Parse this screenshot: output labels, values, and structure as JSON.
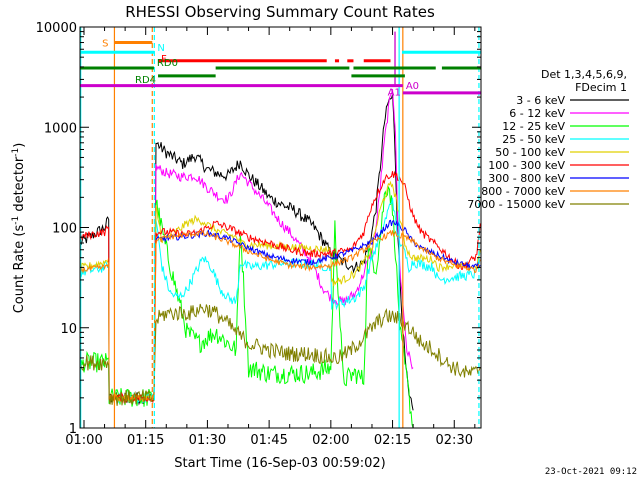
{
  "chart_data": {
    "type": "line",
    "title": "RHESSI Observing Summary Count Rates",
    "xlabel": "Start Time (16-Sep-03 00:59:02)",
    "ylabel": "Count Rate (s⁻¹ detector⁻¹)",
    "ylabel_parts": [
      "Count Rate (s",
      "-1",
      " detector",
      "-1",
      ")"
    ],
    "yscale": "log",
    "ylim": [
      1,
      10000
    ],
    "xlim_min": [
      59.03,
      156.5
    ],
    "x_ticks": [
      {
        "m": 60,
        "label": "01:00"
      },
      {
        "m": 75,
        "label": "01:15"
      },
      {
        "m": 90,
        "label": "01:30"
      },
      {
        "m": 105,
        "label": "01:45"
      },
      {
        "m": 120,
        "label": "02:00"
      },
      {
        "m": 135,
        "label": "02:15"
      },
      {
        "m": 150,
        "label": "02:30"
      }
    ],
    "y_ticks": [
      {
        "v": 1,
        "label": "1"
      },
      {
        "v": 10,
        "label": "10"
      },
      {
        "v": 100,
        "label": "100"
      },
      {
        "v": 1000,
        "label": "1000"
      },
      {
        "v": 10000,
        "label": "10000"
      }
    ],
    "legend": {
      "header": [
        "Det 1,3,4,5,6,9,",
        "FDecim 1"
      ],
      "position": "right"
    },
    "series": [
      {
        "name": "3 - 6 keV",
        "color": "#000000",
        "noise": 0.06,
        "x": [
          59.1,
          65,
          66,
          66.1,
          77,
          77.5,
          80,
          84,
          87,
          90,
          93,
          95,
          98,
          100,
          103,
          105,
          108,
          111,
          114,
          116,
          118,
          120,
          123,
          126,
          128,
          130,
          131,
          132,
          133,
          134,
          135,
          135.5,
          136.2,
          136.8,
          137.5,
          138,
          139,
          140
        ],
        "y": [
          70,
          100,
          120,
          2,
          2,
          700,
          560,
          430,
          520,
          380,
          340,
          330,
          450,
          330,
          250,
          200,
          170,
          150,
          120,
          100,
          75,
          55,
          45,
          40,
          45,
          90,
          160,
          400,
          1100,
          1800,
          2000,
          800,
          100,
          30,
          10,
          5,
          2,
          1.5
        ]
      },
      {
        "name": "6 - 12 keV",
        "color": "#ff00ff",
        "noise": 0.05,
        "x": [
          77,
          77.5,
          80,
          84,
          87,
          90,
          93,
          95,
          98,
          101,
          104,
          106,
          108,
          110,
          112,
          114,
          116,
          118,
          120,
          123,
          126,
          128,
          130,
          131,
          132,
          133,
          134,
          135,
          135.7,
          136.3,
          137,
          138.5,
          140
        ],
        "y": [
          2,
          400,
          350,
          320,
          330,
          250,
          200,
          190,
          350,
          250,
          180,
          140,
          110,
          90,
          70,
          55,
          40,
          25,
          20,
          18,
          22,
          35,
          60,
          100,
          250,
          700,
          1500,
          2600,
          900,
          100,
          30,
          6,
          4
        ]
      },
      {
        "name": "12 - 25 keV",
        "color": "#00ff00",
        "noise": 0.1,
        "x": [
          59.1,
          60,
          66,
          66.1,
          77,
          77.5,
          80,
          85,
          88,
          90,
          92,
          95,
          97,
          98,
          100,
          105,
          110,
          115,
          120,
          121,
          123,
          126,
          128,
          129,
          131,
          132,
          133,
          134,
          135,
          135.7,
          136.3,
          137,
          138.5,
          140
        ],
        "y": [
          4,
          4.5,
          4.5,
          2,
          2,
          180,
          60,
          9,
          7,
          8,
          9,
          7,
          6,
          100,
          4,
          3.5,
          3.5,
          3.5,
          4,
          100,
          3,
          3.5,
          3,
          60,
          40,
          80,
          200,
          280,
          150,
          60,
          20,
          8,
          3,
          1
        ]
      },
      {
        "name": "25 - 50 keV",
        "color": "#00ffff",
        "noise": 0.05,
        "x": [
          59.1,
          60,
          65,
          66,
          66.1,
          77,
          77.5,
          79,
          81,
          83,
          85,
          87,
          89,
          91,
          93,
          95,
          97,
          98,
          100,
          104,
          108,
          112,
          116,
          120,
          120.2,
          123,
          126,
          128,
          130,
          132,
          133,
          134,
          135,
          136,
          137,
          138,
          139,
          140,
          145,
          146,
          150,
          155,
          155.5,
          156.3
        ],
        "y": [
          35,
          36,
          40,
          45,
          2,
          2,
          120,
          40,
          22,
          20,
          24,
          35,
          50,
          40,
          25,
          20,
          18,
          45,
          40,
          42,
          44,
          44,
          43,
          40,
          17,
          18,
          20,
          25,
          50,
          80,
          110,
          150,
          200,
          90,
          70,
          55,
          40,
          45,
          40,
          30,
          32,
          34,
          38,
          55
        ]
      },
      {
        "name": "50 - 100 keV",
        "color": "#e0d000",
        "noise": 0.04,
        "x": [
          59.1,
          60,
          65,
          66,
          66.1,
          77,
          77.5,
          79,
          81,
          83,
          85,
          87,
          89,
          91,
          93,
          95,
          97,
          98,
          100,
          105,
          110,
          115,
          120,
          120.2,
          123,
          126,
          128,
          130,
          131,
          132,
          133,
          134,
          135,
          136,
          137,
          138,
          139,
          140,
          145,
          146,
          150,
          155,
          155.5,
          156.3
        ],
        "y": [
          40,
          40,
          45,
          50,
          2,
          2,
          160,
          75,
          85,
          95,
          110,
          120,
          115,
          100,
          90,
          85,
          80,
          70,
          68,
          66,
          64,
          62,
          60,
          28,
          30,
          35,
          45,
          60,
          100,
          150,
          200,
          250,
          270,
          180,
          110,
          70,
          55,
          50,
          48,
          40,
          42,
          40,
          42,
          60
        ]
      },
      {
        "name": "100 - 300 keV",
        "color": "#ff0000",
        "noise": 0.04,
        "x": [
          59.1,
          60,
          65,
          66,
          66.1,
          77,
          77.5,
          80,
          85,
          88,
          90,
          92,
          95,
          100,
          105,
          110,
          115,
          120,
          125,
          128,
          130,
          132,
          133,
          134,
          135,
          136,
          137,
          138,
          139,
          140,
          142,
          145,
          148,
          150,
          152,
          155,
          155.5,
          156.3
        ],
        "y": [
          80,
          82,
          90,
          100,
          2,
          2,
          90,
          90,
          85,
          90,
          100,
          110,
          100,
          80,
          70,
          60,
          55,
          55,
          60,
          90,
          170,
          250,
          300,
          330,
          340,
          330,
          300,
          250,
          180,
          130,
          90,
          70,
          55,
          45,
          40,
          50,
          55,
          110
        ]
      },
      {
        "name": "300 - 800 keV",
        "color": "#0000ff",
        "noise": 0.03,
        "x": [
          77.5,
          80,
          85,
          88,
          90,
          95,
          100,
          105,
          110,
          115,
          120,
          125,
          128,
          130,
          132,
          134,
          135,
          136,
          137,
          138,
          139,
          140,
          142,
          145,
          150,
          155,
          156.3
        ],
        "y": [
          75,
          78,
          82,
          85,
          88,
          78,
          62,
          52,
          47,
          45,
          50,
          58,
          66,
          72,
          88,
          108,
          112,
          110,
          100,
          95,
          80,
          72,
          62,
          55,
          45,
          40,
          42
        ]
      },
      {
        "name": "800 - 7000 keV",
        "color": "#ff8000",
        "noise": 0.03,
        "x": [
          59.1,
          60,
          65,
          66,
          66.1,
          77,
          77.5,
          80,
          85,
          88,
          90,
          92,
          95,
          100,
          105,
          110,
          115,
          120,
          125,
          128,
          130,
          132,
          134,
          135,
          136,
          137,
          138,
          140,
          142,
          145,
          150,
          155,
          155.5,
          156.3
        ],
        "y": [
          38,
          38,
          40,
          45,
          2,
          2,
          72,
          80,
          85,
          88,
          85,
          80,
          72,
          58,
          48,
          42,
          40,
          42,
          50,
          60,
          70,
          78,
          85,
          88,
          85,
          82,
          80,
          72,
          62,
          52,
          42,
          38,
          38,
          48
        ]
      },
      {
        "name": "7000 - 15000 keV",
        "color": "#808000",
        "noise": 0.08,
        "x": [
          59.1,
          60,
          65,
          66,
          66.1,
          77,
          77.5,
          80,
          83,
          86,
          89,
          92,
          95,
          97,
          100,
          105,
          110,
          115,
          120,
          122,
          125,
          128,
          130,
          132,
          134,
          136,
          137,
          138,
          140,
          142,
          145,
          148,
          150,
          153,
          155,
          156.3
        ],
        "y": [
          4.5,
          4.5,
          4.5,
          4.5,
          2,
          2,
          12,
          14,
          14,
          14,
          16,
          14,
          11,
          9,
          7,
          6,
          5.5,
          5.5,
          5,
          5,
          6,
          8,
          10,
          12,
          13,
          12.5,
          12,
          11,
          9,
          7,
          6,
          4.5,
          4,
          3.5,
          3.5,
          4
        ]
      }
    ],
    "vertical_lines": [
      {
        "m": 59.2,
        "color": "#00ffff",
        "style": "solid"
      },
      {
        "m": 67.4,
        "color": "#ff8000",
        "style": "solid"
      },
      {
        "m": 76.6,
        "color": "#ff8000",
        "style": "dashed"
      },
      {
        "m": 77.1,
        "color": "#00ffff",
        "style": "dashed"
      },
      {
        "m": 136.6,
        "color": "#00ffff",
        "style": "solid"
      },
      {
        "m": 137.5,
        "color": "#ff8000",
        "style": "solid"
      },
      {
        "m": 156.0,
        "color": "#00ffff",
        "style": "dashed"
      }
    ],
    "flag_bars": [
      {
        "label": "S",
        "color": "#ff8000",
        "segments": [
          [
            67.4,
            76.6
          ]
        ],
        "ylevel": 7000,
        "labelPos": "left"
      },
      {
        "label": "N",
        "color": "#00ffff",
        "segments": [
          [
            59.1,
            77.1
          ],
          [
            137.3,
            156.5
          ]
        ],
        "ylevel": 5600,
        "labelPos": "after-first"
      },
      {
        "label": "F",
        "color": "#ff0000",
        "segments": [
          [
            78,
            119
          ],
          [
            121,
            122
          ],
          [
            124,
            125.5
          ],
          [
            128,
            134.5
          ]
        ],
        "ylevel": 4600,
        "labelPos": "left"
      },
      {
        "label": "RD0",
        "color": "#008000",
        "segments": [
          [
            59.1,
            77
          ],
          [
            92,
            124.5
          ],
          [
            125.5,
            145.5
          ],
          [
            147,
            156.5
          ]
        ],
        "ylevel": 3900,
        "labelPos": "after-first"
      },
      {
        "label": "RD4",
        "color": "#008000",
        "segments": [
          [
            78,
            92
          ],
          [
            125,
            138
          ]
        ],
        "ylevel": 3250,
        "labelPos": "left"
      },
      {
        "label": "A1",
        "color": "#cc00cc",
        "segments": [
          [
            59.1,
            137.5
          ]
        ],
        "ylevel": 2600,
        "labelPos": "end"
      },
      {
        "label": "A0",
        "color": "#cc00cc",
        "segments": [
          [
            137.5,
            156.5
          ]
        ],
        "ylevel": 2200,
        "labelPos": "start"
      }
    ],
    "marker_vertical": {
      "m": 135.6,
      "color": "#cc00cc",
      "from": 2600,
      "to": 9000
    }
  },
  "footer": {
    "timestamp": "23-Oct-2021 09:12"
  }
}
